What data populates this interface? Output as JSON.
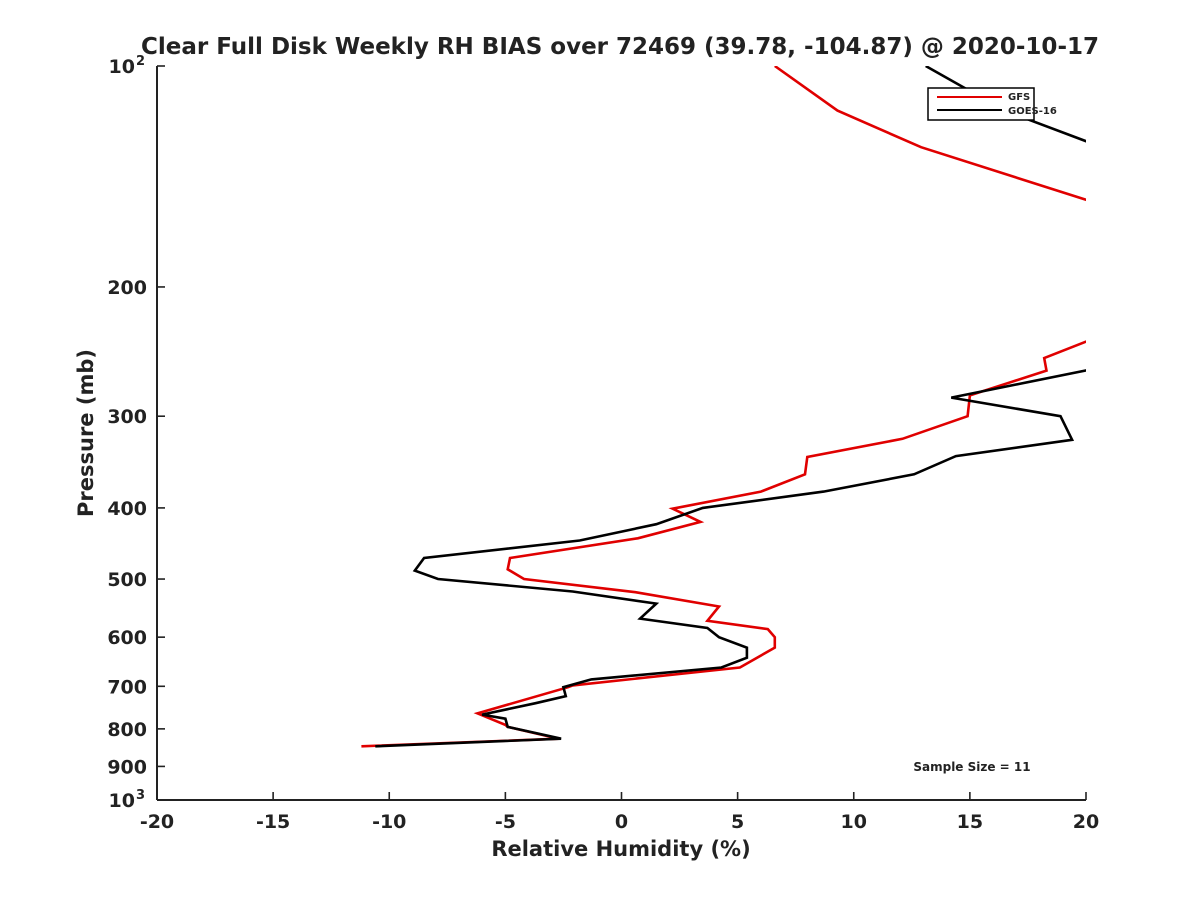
{
  "chart_data": {
    "type": "line",
    "title": "Clear Full Disk Weekly RH BIAS over 72469 (39.78, -104.87) @ 2020-10-17",
    "xlabel": "Relative Humidity (%)",
    "ylabel": "Pressure (mb)",
    "xlim": [
      -20,
      20
    ],
    "ylim": [
      100,
      1000
    ],
    "y_scale": "log",
    "y_reversed": true,
    "x_ticks": [
      "-20",
      "-15",
      "-10",
      "-5",
      "0",
      "5",
      "10",
      "15",
      "20"
    ],
    "y_ticks": [
      {
        "value": 100,
        "label": "10",
        "sup": "2"
      },
      {
        "value": 200,
        "label": "200"
      },
      {
        "value": 300,
        "label": "300"
      },
      {
        "value": 400,
        "label": "400"
      },
      {
        "value": 500,
        "label": "500"
      },
      {
        "value": 600,
        "label": "600"
      },
      {
        "value": 700,
        "label": "700"
      },
      {
        "value": 800,
        "label": "800"
      },
      {
        "value": 900,
        "label": "900"
      },
      {
        "value": 1000,
        "label": "10",
        "sup": "3"
      }
    ],
    "grid": false,
    "legend": "top-right",
    "annotation": "Sample Size = 11",
    "series": [
      {
        "name": "GFS",
        "color": "#e00000",
        "points": [
          [
            6.6,
            100
          ],
          [
            9.3,
            115
          ],
          [
            12.9,
            129
          ],
          [
            20.8,
            155
          ],
          [
            20.8,
            232
          ],
          [
            18.2,
            250
          ],
          [
            18.3,
            260
          ],
          [
            15.0,
            281
          ],
          [
            14.9,
            300
          ],
          [
            12.1,
            322
          ],
          [
            8.0,
            341
          ],
          [
            7.9,
            360
          ],
          [
            6.0,
            380
          ],
          [
            2.2,
            401
          ],
          [
            3.4,
            418
          ],
          [
            0.7,
            440
          ],
          [
            -4.8,
            468
          ],
          [
            -4.9,
            485
          ],
          [
            -4.2,
            500
          ],
          [
            0.6,
            521
          ],
          [
            4.2,
            545
          ],
          [
            3.7,
            570
          ],
          [
            6.3,
            585
          ],
          [
            6.6,
            600
          ],
          [
            6.6,
            620
          ],
          [
            5.1,
            660
          ],
          [
            -2.1,
            698
          ],
          [
            -2.3,
            702
          ],
          [
            -6.2,
            762
          ],
          [
            -5.0,
            790
          ],
          [
            -4.9,
            795
          ],
          [
            -2.7,
            825
          ],
          [
            -11.2,
            845
          ]
        ]
      },
      {
        "name": "GOES-16",
        "color": "#000000",
        "points": [
          [
            13.1,
            100
          ],
          [
            16.5,
            115
          ],
          [
            20.4,
            128
          ],
          [
            20.5,
            258
          ],
          [
            14.2,
            283
          ],
          [
            18.9,
            300
          ],
          [
            19.4,
            323
          ],
          [
            14.4,
            340
          ],
          [
            12.6,
            360
          ],
          [
            8.7,
            380
          ],
          [
            3.5,
            400
          ],
          [
            1.5,
            421
          ],
          [
            -1.8,
            443
          ],
          [
            -8.5,
            468
          ],
          [
            -8.9,
            487
          ],
          [
            -7.9,
            500
          ],
          [
            -2.1,
            520
          ],
          [
            1.5,
            540
          ],
          [
            0.8,
            566
          ],
          [
            3.7,
            583
          ],
          [
            4.2,
            600
          ],
          [
            5.4,
            620
          ],
          [
            5.4,
            640
          ],
          [
            4.3,
            660
          ],
          [
            -1.3,
            685
          ],
          [
            -2.5,
            702
          ],
          [
            -2.4,
            722
          ],
          [
            -3.7,
            738
          ],
          [
            -6.0,
            765
          ],
          [
            -5.0,
            775
          ],
          [
            -4.9,
            795
          ],
          [
            -2.6,
            825
          ],
          [
            -10.6,
            845
          ]
        ]
      }
    ]
  }
}
